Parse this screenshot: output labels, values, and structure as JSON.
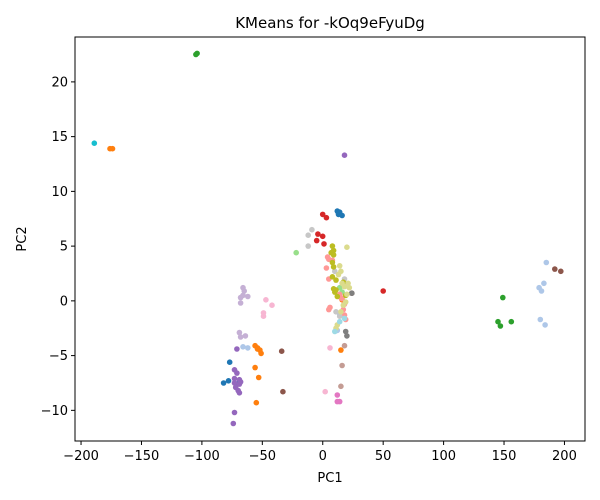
{
  "chart_data": {
    "type": "scatter",
    "title": "KMeans for -kOq9eFyuDg",
    "xlabel": "PC1",
    "ylabel": "PC2",
    "xlim": [
      -205,
      217
    ],
    "ylim": [
      -12.8,
      24.1
    ],
    "xticks": [
      -200,
      -150,
      -100,
      -50,
      0,
      50,
      100,
      150,
      200
    ],
    "yticks": [
      -10,
      -5,
      0,
      5,
      10,
      15,
      20
    ],
    "xtick_labels": [
      "−200",
      "−150",
      "−100",
      "−50",
      "0",
      "50",
      "100",
      "150",
      "200"
    ],
    "ytick_labels": [
      "−10",
      "−5",
      "0",
      "5",
      "10",
      "15",
      "20"
    ],
    "grid": false,
    "legend": false,
    "series": [
      {
        "color": "#1f77b4",
        "points": [
          [
            12,
            8.2
          ],
          [
            14,
            8.1
          ],
          [
            13,
            7.9
          ],
          [
            16,
            7.8
          ],
          [
            -77,
            -5.6
          ],
          [
            -78,
            -7.3
          ],
          [
            -82,
            -7.5
          ],
          [
            -71,
            -7.6
          ]
        ]
      },
      {
        "color": "#aec7e8",
        "points": [
          [
            185,
            3.5
          ],
          [
            183,
            1.6
          ],
          [
            179,
            1.2
          ],
          [
            181,
            0.9
          ],
          [
            180,
            -1.7
          ],
          [
            184,
            -2.2
          ],
          [
            12,
            -2.7
          ],
          [
            14,
            -1.2
          ],
          [
            -62,
            -4.3
          ],
          [
            -66,
            -4.2
          ]
        ]
      },
      {
        "color": "#ff7f0e",
        "points": [
          [
            -176,
            13.9
          ],
          [
            -174,
            13.9
          ],
          [
            -56,
            -4.1
          ],
          [
            -54,
            -4.3
          ],
          [
            -52,
            -4.5
          ],
          [
            -51,
            -4.8
          ],
          [
            -53,
            -7.0
          ],
          [
            -56,
            -6.1
          ],
          [
            -55,
            -9.3
          ],
          [
            15,
            -4.5
          ],
          [
            16,
            0.1
          ],
          [
            -54,
            -4.4
          ]
        ]
      },
      {
        "color": "#2ca02c",
        "points": [
          [
            -105,
            22.5
          ],
          [
            -104,
            22.6
          ],
          [
            149,
            0.3
          ],
          [
            145,
            -1.9
          ],
          [
            147,
            -2.3
          ],
          [
            156,
            -1.9
          ]
        ]
      },
      {
        "color": "#98df8a",
        "points": [
          [
            -22,
            4.4
          ],
          [
            14,
            1.2
          ],
          [
            16,
            0.8
          ]
        ]
      },
      {
        "color": "#d62728",
        "points": [
          [
            0,
            7.9
          ],
          [
            3,
            7.6
          ],
          [
            -4,
            6.1
          ],
          [
            0,
            5.9
          ],
          [
            -5,
            5.5
          ],
          [
            1,
            5.2
          ],
          [
            50,
            0.9
          ]
        ]
      },
      {
        "color": "#ff9896",
        "points": [
          [
            4,
            4.0
          ],
          [
            5,
            3.8
          ],
          [
            8,
            3.7
          ],
          [
            3,
            3.0
          ],
          [
            5,
            2.0
          ],
          [
            14,
            0.6
          ],
          [
            15,
            0.3
          ],
          [
            17,
            -0.8
          ],
          [
            18,
            -1.3
          ],
          [
            19,
            -1.7
          ],
          [
            5,
            -0.8
          ],
          [
            6,
            -0.6
          ],
          [
            16,
            0.2
          ],
          [
            18,
            -0.3
          ]
        ]
      },
      {
        "color": "#9467bd",
        "points": [
          [
            18,
            13.3
          ],
          [
            -71,
            -4.4
          ],
          [
            -73,
            -6.3
          ],
          [
            -71,
            -6.6
          ],
          [
            -73,
            -7.1
          ],
          [
            -69,
            -7.2
          ],
          [
            -73,
            -7.5
          ],
          [
            -69,
            -7.6
          ],
          [
            -72,
            -7.9
          ],
          [
            -70,
            -8.2
          ],
          [
            -69,
            -8.4
          ],
          [
            -73,
            -10.2
          ],
          [
            -74,
            -11.2
          ],
          [
            -68,
            -7.4
          ]
        ]
      },
      {
        "color": "#c5b0d5",
        "points": [
          [
            -66,
            1.2
          ],
          [
            -65,
            0.9
          ],
          [
            -66,
            0.5
          ],
          [
            -68,
            0.3
          ],
          [
            -62,
            0.4
          ],
          [
            -68,
            -0.2
          ],
          [
            -69,
            -2.9
          ],
          [
            -68,
            -3.3
          ],
          [
            -64,
            -3.2
          ]
        ]
      },
      {
        "color": "#8c564b",
        "points": [
          [
            -34,
            -4.6
          ],
          [
            -33,
            -8.3
          ],
          [
            24,
            0.7
          ],
          [
            192,
            2.9
          ],
          [
            197,
            2.7
          ]
        ]
      },
      {
        "color": "#c49c94",
        "points": [
          [
            16,
            -5.9
          ],
          [
            15,
            -7.8
          ],
          [
            18,
            -4.1
          ]
        ]
      },
      {
        "color": "#e377c2",
        "points": [
          [
            12,
            -8.6
          ],
          [
            12,
            -9.2
          ],
          [
            14,
            -9.2
          ]
        ]
      },
      {
        "color": "#f7b6d2",
        "points": [
          [
            -47,
            0.1
          ],
          [
            -42,
            -0.4
          ],
          [
            -49,
            -1.1
          ],
          [
            -49,
            -1.4
          ],
          [
            6,
            -4.3
          ],
          [
            2,
            -8.3
          ]
        ]
      },
      {
        "color": "#7f7f7f",
        "points": [
          [
            24,
            0.7
          ],
          [
            19,
            -2.8
          ],
          [
            20,
            -3.2
          ]
        ]
      },
      {
        "color": "#c7c7c7",
        "points": [
          [
            -12,
            6.0
          ],
          [
            -9,
            6.5
          ],
          [
            -12,
            5.0
          ],
          [
            10,
            2.7
          ],
          [
            18,
            2.0
          ],
          [
            11,
            -1.0
          ],
          [
            14,
            -1.4
          ]
        ]
      },
      {
        "color": "#bcbd22",
        "points": [
          [
            8,
            5.0
          ],
          [
            9,
            4.6
          ],
          [
            7,
            4.4
          ],
          [
            9,
            4.2
          ],
          [
            8,
            3.5
          ],
          [
            9,
            3.1
          ],
          [
            8,
            2.2
          ],
          [
            11,
            1.9
          ],
          [
            10,
            0.8
          ],
          [
            12,
            0.4
          ],
          [
            11,
            1.0
          ],
          [
            9,
            1.1
          ],
          [
            17,
            1.7
          ],
          [
            19,
            0.5
          ]
        ]
      },
      {
        "color": "#dbdb8d",
        "points": [
          [
            20,
            4.9
          ],
          [
            14,
            3.2
          ],
          [
            15,
            2.7
          ],
          [
            13,
            2.4
          ],
          [
            18,
            1.3
          ],
          [
            16,
            1.6
          ],
          [
            21,
            1.6
          ],
          [
            20,
            0.6
          ],
          [
            22,
            1.2
          ],
          [
            11,
            -2.5
          ],
          [
            12,
            -2.2
          ],
          [
            15,
            -1.0
          ],
          [
            17,
            -0.4
          ],
          [
            19,
            -0.1
          ]
        ]
      },
      {
        "color": "#17becf",
        "points": [
          [
            -189,
            14.4
          ]
        ]
      },
      {
        "color": "#9edae5",
        "points": [
          [
            10,
            -2.8
          ],
          [
            14,
            -1.9
          ],
          [
            18,
            -1.6
          ]
        ]
      }
    ]
  }
}
